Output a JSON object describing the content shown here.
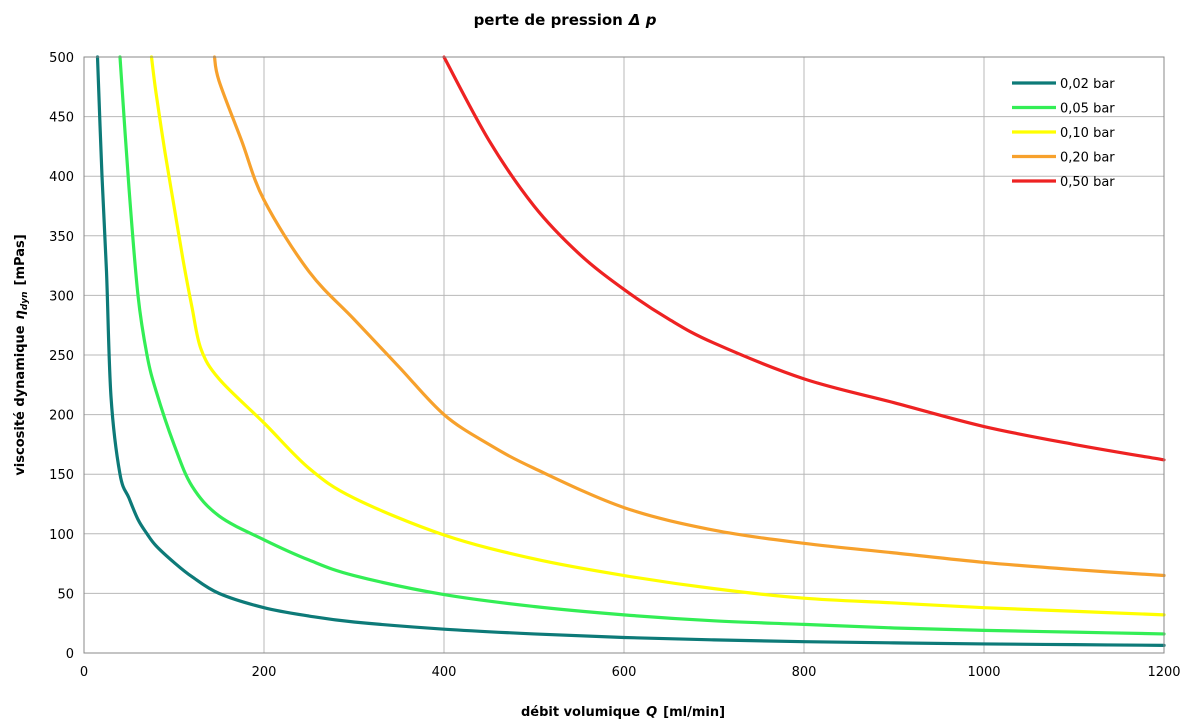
{
  "chart_data": {
    "type": "line",
    "title": {
      "main": "perte de pression",
      "symbol": "Δ p"
    },
    "xlabel": {
      "text": "débit volumique",
      "symbol": "Q",
      "unit": "[ml/min]"
    },
    "ylabel": {
      "text": "viscosité dynamique",
      "symbol": "η",
      "subscript": "dyn",
      "unit": "[mPas]"
    },
    "xlim": [
      0,
      1200
    ],
    "ylim": [
      0,
      500
    ],
    "x_ticks": [
      "0",
      "200",
      "400",
      "600",
      "800",
      "1000",
      "1200"
    ],
    "y_ticks": [
      "0",
      "50",
      "100",
      "150",
      "200",
      "250",
      "300",
      "350",
      "400",
      "450",
      "500"
    ],
    "grid": true,
    "legend_position": "top-right",
    "series": [
      {
        "name": "0,02 bar",
        "color": "#0d7a78",
        "x": [
          15,
          20,
          25,
          30,
          40,
          50,
          60,
          70,
          80,
          100,
          120,
          150,
          200,
          250,
          300,
          400,
          500,
          600,
          700,
          800,
          900,
          1000,
          1100,
          1200
        ],
        "y": [
          500,
          400,
          320,
          215,
          150,
          130,
          112,
          100,
          90,
          76,
          64,
          50,
          38,
          31,
          26,
          20,
          16,
          13,
          11,
          9.5,
          8.5,
          7.6,
          7,
          6.4
        ]
      },
      {
        "name": "0,05 bar",
        "color": "#33ee55",
        "x": [
          40,
          50,
          60,
          70,
          80,
          100,
          120,
          150,
          200,
          250,
          300,
          400,
          500,
          600,
          700,
          800,
          900,
          1000,
          1100,
          1200
        ],
        "y": [
          500,
          390,
          300,
          250,
          220,
          175,
          140,
          115,
          95,
          78,
          65,
          49,
          39,
          32,
          27,
          24,
          21,
          19,
          17.5,
          16
        ]
      },
      {
        "name": "0,10 bar",
        "color": "#ffff00",
        "x": [
          75,
          80,
          90,
          100,
          110,
          120,
          130,
          150,
          200,
          250,
          300,
          400,
          500,
          600,
          700,
          800,
          900,
          1000,
          1100,
          1200
        ],
        "y": [
          500,
          470,
          420,
          375,
          330,
          290,
          255,
          230,
          193,
          155,
          130,
          99,
          79,
          65,
          54,
          46,
          42,
          38,
          35,
          32
        ]
      },
      {
        "name": "0,20 bar",
        "color": "#f7a12c",
        "x": [
          145,
          150,
          175,
          200,
          250,
          300,
          350,
          400,
          450,
          500,
          600,
          700,
          800,
          900,
          1000,
          1100,
          1200
        ],
        "y": [
          500,
          480,
          430,
          380,
          320,
          280,
          240,
          200,
          175,
          155,
          122,
          103,
          92,
          84,
          76,
          70,
          65
        ]
      },
      {
        "name": "0,50 bar",
        "color": "#ee2222",
        "x": [
          400,
          450,
          500,
          550,
          600,
          650,
          700,
          800,
          900,
          1000,
          1100,
          1200
        ],
        "y": [
          500,
          430,
          375,
          335,
          305,
          280,
          260,
          230,
          210,
          190,
          175,
          162
        ]
      }
    ]
  }
}
